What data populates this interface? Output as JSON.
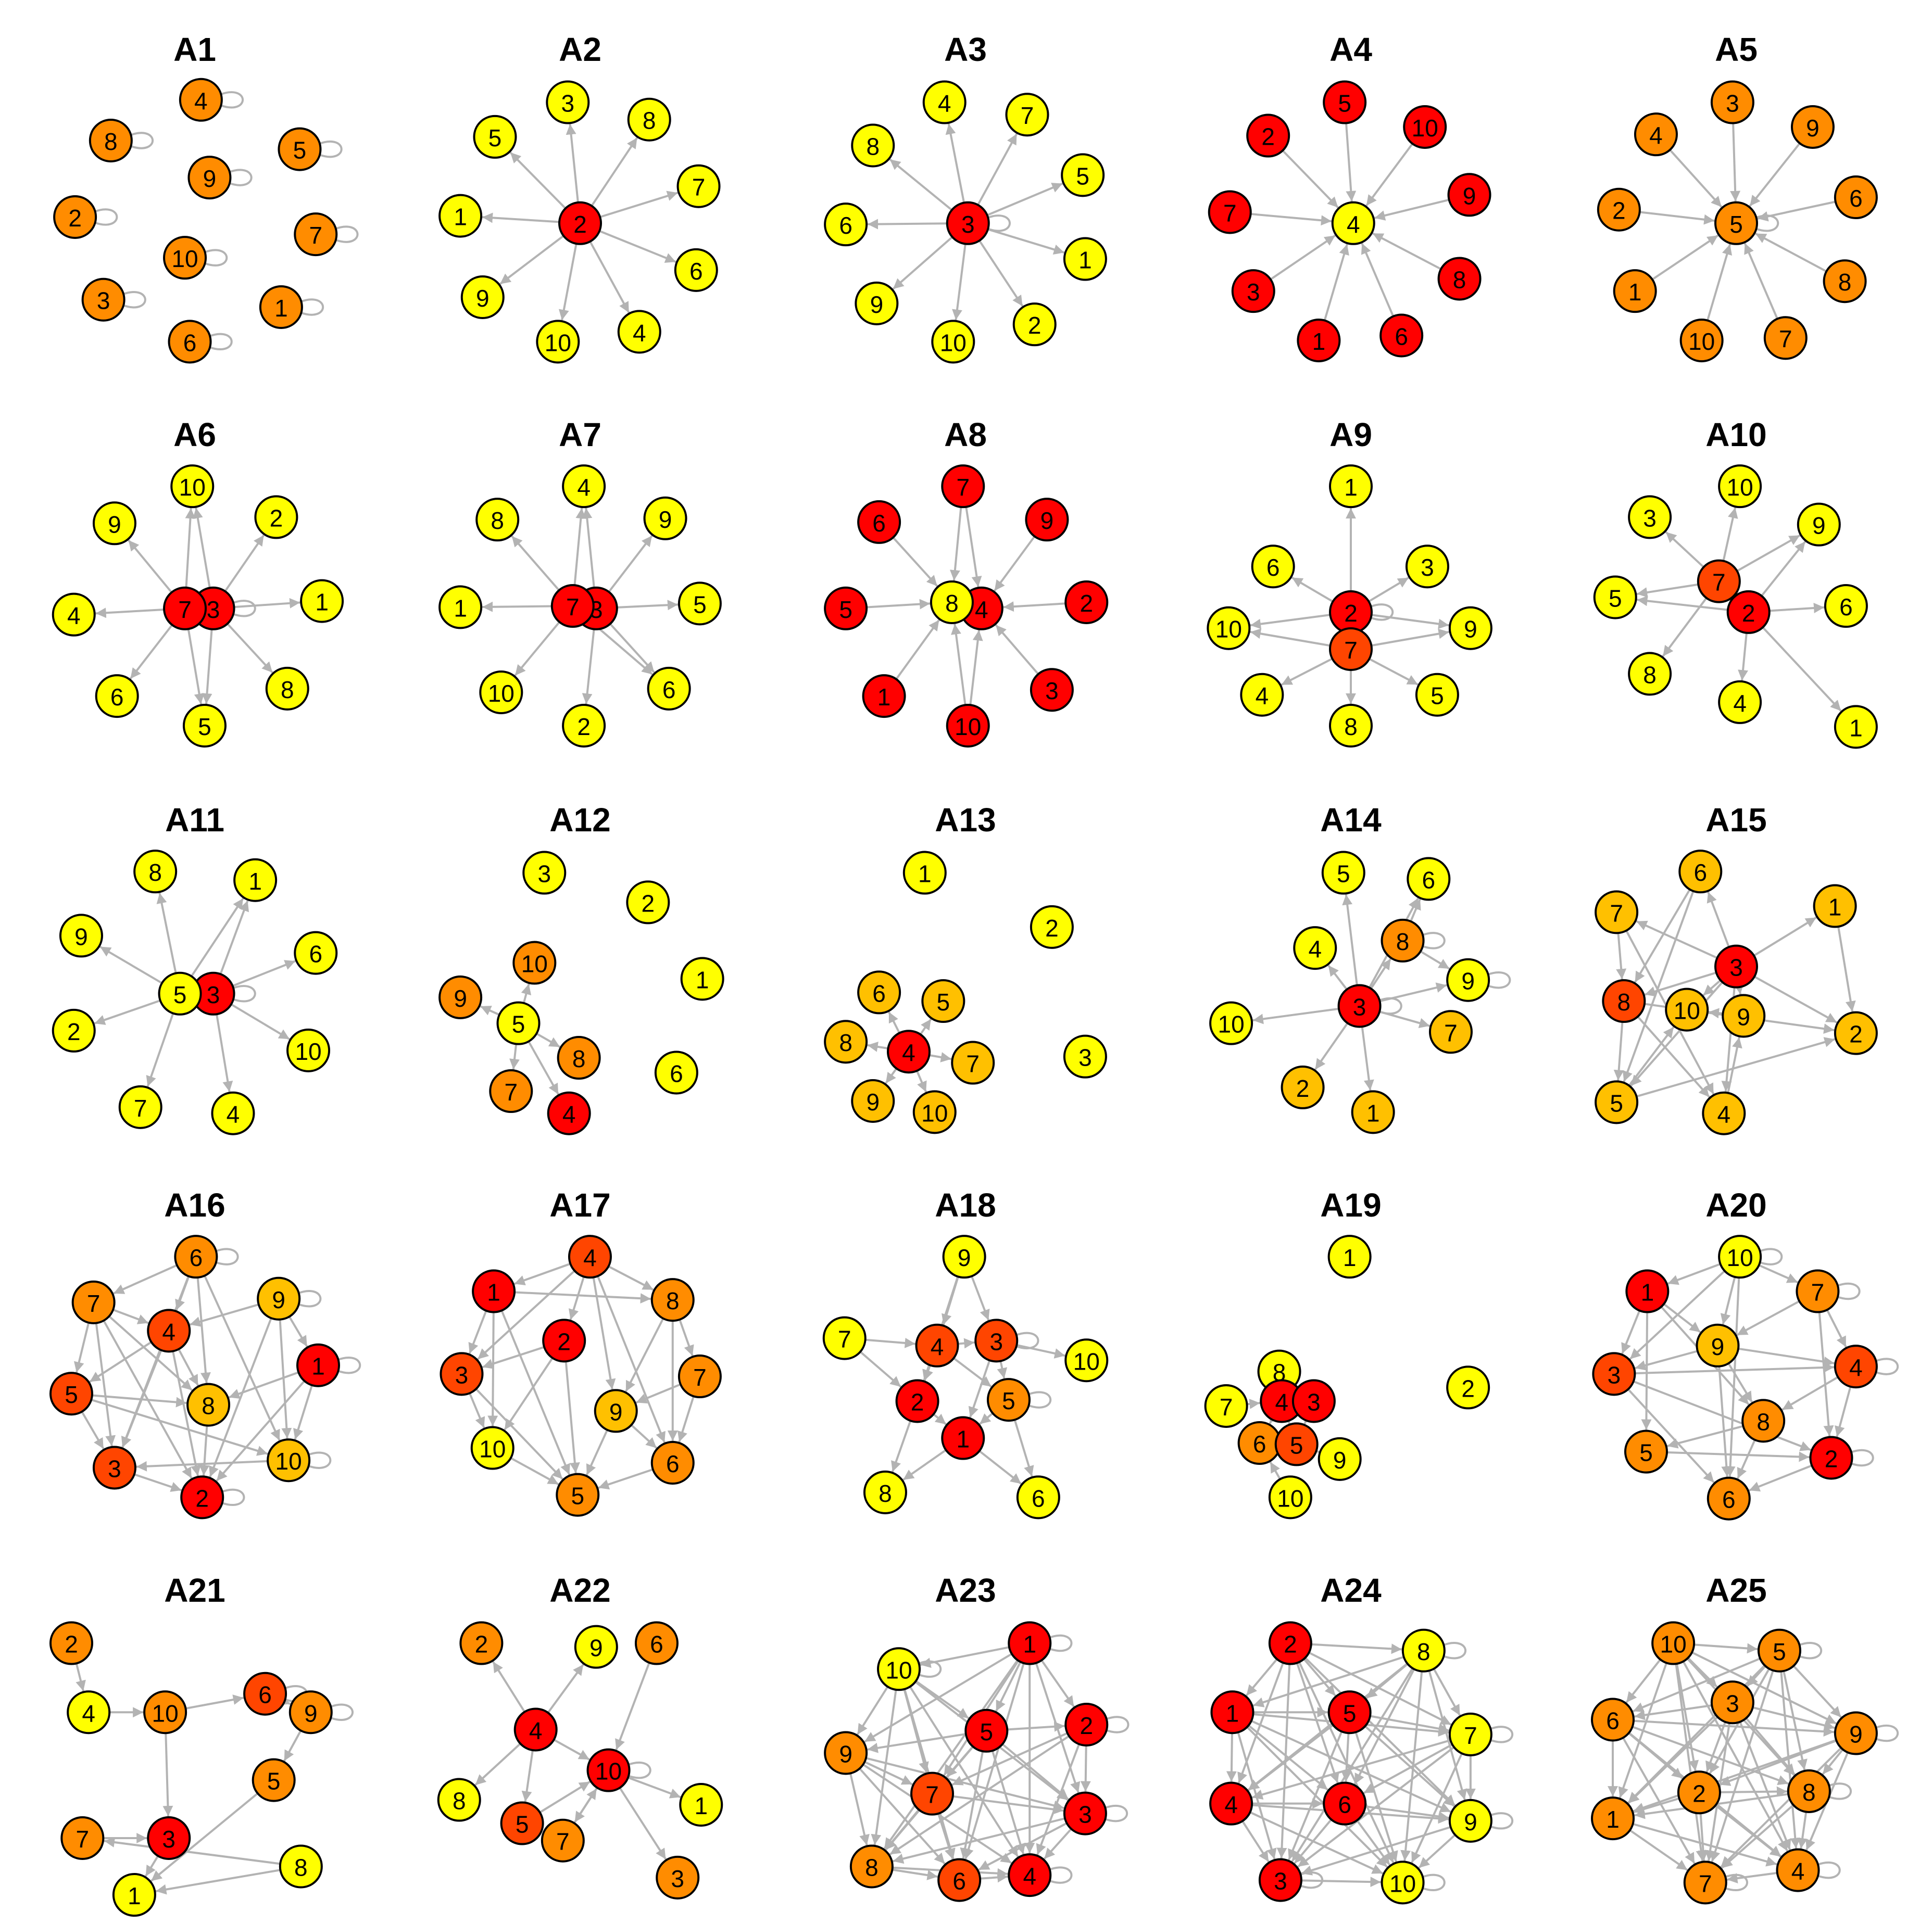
{
  "colors": {
    "red": "#ff0000",
    "orange_red": "#ff4500",
    "orange": "#ff8c00",
    "amber": "#ffc000",
    "yellow": "#ffff00",
    "edge": "#b3b3b3"
  },
  "panels": [
    {
      "title": "A1",
      "nodes": [
        {
          "label": "4",
          "color": "orange"
        },
        {
          "label": "8",
          "color": "orange"
        },
        {
          "label": "5",
          "color": "orange"
        },
        {
          "label": "9",
          "color": "orange"
        },
        {
          "label": "2",
          "color": "orange"
        },
        {
          "label": "7",
          "color": "orange"
        },
        {
          "label": "10",
          "color": "orange"
        },
        {
          "label": "3",
          "color": "orange"
        },
        {
          "label": "1",
          "color": "orange"
        },
        {
          "label": "6",
          "color": "orange"
        }
      ]
    },
    {
      "title": "A2",
      "nodes": [
        {
          "label": "3",
          "color": "yellow"
        },
        {
          "label": "8",
          "color": "yellow"
        },
        {
          "label": "5",
          "color": "yellow"
        },
        {
          "label": "7",
          "color": "yellow"
        },
        {
          "label": "1",
          "color": "yellow"
        },
        {
          "label": "2",
          "color": "red"
        },
        {
          "label": "6",
          "color": "yellow"
        },
        {
          "label": "9",
          "color": "yellow"
        },
        {
          "label": "10",
          "color": "yellow"
        },
        {
          "label": "4",
          "color": "yellow"
        }
      ]
    },
    {
      "title": "A3",
      "nodes": [
        {
          "label": "4",
          "color": "yellow"
        },
        {
          "label": "7",
          "color": "yellow"
        },
        {
          "label": "8",
          "color": "yellow"
        },
        {
          "label": "5",
          "color": "yellow"
        },
        {
          "label": "6",
          "color": "yellow"
        },
        {
          "label": "3",
          "color": "red"
        },
        {
          "label": "1",
          "color": "yellow"
        },
        {
          "label": "9",
          "color": "yellow"
        },
        {
          "label": "10",
          "color": "yellow"
        },
        {
          "label": "2",
          "color": "yellow"
        }
      ]
    },
    {
      "title": "A4",
      "nodes": [
        {
          "label": "5",
          "color": "red"
        },
        {
          "label": "2",
          "color": "red"
        },
        {
          "label": "10",
          "color": "red"
        },
        {
          "label": "9",
          "color": "red"
        },
        {
          "label": "7",
          "color": "red"
        },
        {
          "label": "4",
          "color": "yellow"
        },
        {
          "label": "3",
          "color": "red"
        },
        {
          "label": "8",
          "color": "red"
        },
        {
          "label": "1",
          "color": "red"
        },
        {
          "label": "6",
          "color": "red"
        }
      ]
    },
    {
      "title": "A5",
      "nodes": [
        {
          "label": "3",
          "color": "orange"
        },
        {
          "label": "4",
          "color": "orange"
        },
        {
          "label": "9",
          "color": "orange"
        },
        {
          "label": "6",
          "color": "orange"
        },
        {
          "label": "2",
          "color": "orange"
        },
        {
          "label": "5",
          "color": "orange"
        },
        {
          "label": "1",
          "color": "orange"
        },
        {
          "label": "8",
          "color": "orange"
        },
        {
          "label": "10",
          "color": "orange"
        },
        {
          "label": "7",
          "color": "orange"
        }
      ]
    },
    {
      "title": "A6",
      "nodes": [
        {
          "label": "10",
          "color": "yellow"
        },
        {
          "label": "9",
          "color": "yellow"
        },
        {
          "label": "2",
          "color": "yellow"
        },
        {
          "label": "1",
          "color": "yellow"
        },
        {
          "label": "4",
          "color": "yellow"
        },
        {
          "label": "3",
          "color": "red"
        },
        {
          "label": "7",
          "color": "red"
        },
        {
          "label": "8",
          "color": "yellow"
        },
        {
          "label": "6",
          "color": "yellow"
        },
        {
          "label": "5",
          "color": "yellow"
        }
      ]
    },
    {
      "title": "A7",
      "nodes": [
        {
          "label": "4",
          "color": "yellow"
        },
        {
          "label": "8",
          "color": "yellow"
        },
        {
          "label": "9",
          "color": "yellow"
        },
        {
          "label": "5",
          "color": "yellow"
        },
        {
          "label": "1",
          "color": "yellow"
        },
        {
          "label": "3",
          "color": "red"
        },
        {
          "label": "7",
          "color": "red"
        },
        {
          "label": "6",
          "color": "yellow"
        },
        {
          "label": "10",
          "color": "yellow"
        },
        {
          "label": "2",
          "color": "yellow"
        }
      ]
    },
    {
      "title": "A8",
      "nodes": [
        {
          "label": "7",
          "color": "red"
        },
        {
          "label": "6",
          "color": "red"
        },
        {
          "label": "9",
          "color": "red"
        },
        {
          "label": "2",
          "color": "red"
        },
        {
          "label": "5",
          "color": "red"
        },
        {
          "label": "4",
          "color": "red"
        },
        {
          "label": "8",
          "color": "yellow"
        },
        {
          "label": "3",
          "color": "red"
        },
        {
          "label": "1",
          "color": "red"
        },
        {
          "label": "10",
          "color": "red"
        }
      ]
    },
    {
      "title": "A9",
      "nodes": [
        {
          "label": "1",
          "color": "yellow"
        },
        {
          "label": "6",
          "color": "yellow"
        },
        {
          "label": "3",
          "color": "yellow"
        },
        {
          "label": "2",
          "color": "red"
        },
        {
          "label": "9",
          "color": "yellow"
        },
        {
          "label": "10",
          "color": "yellow"
        },
        {
          "label": "7",
          "color": "orange_red"
        },
        {
          "label": "4",
          "color": "yellow"
        },
        {
          "label": "5",
          "color": "yellow"
        },
        {
          "label": "8",
          "color": "yellow"
        }
      ]
    },
    {
      "title": "A10",
      "nodes": [
        {
          "label": "10",
          "color": "yellow"
        },
        {
          "label": "3",
          "color": "yellow"
        },
        {
          "label": "9",
          "color": "yellow"
        },
        {
          "label": "7",
          "color": "orange_red"
        },
        {
          "label": "5",
          "color": "yellow"
        },
        {
          "label": "2",
          "color": "red"
        },
        {
          "label": "6",
          "color": "yellow"
        },
        {
          "label": "8",
          "color": "yellow"
        },
        {
          "label": "4",
          "color": "yellow"
        },
        {
          "label": "1",
          "color": "yellow"
        }
      ]
    },
    {
      "title": "A11",
      "nodes": [
        {
          "label": "8",
          "color": "yellow"
        },
        {
          "label": "1",
          "color": "yellow"
        },
        {
          "label": "9",
          "color": "yellow"
        },
        {
          "label": "6",
          "color": "yellow"
        },
        {
          "label": "3",
          "color": "red"
        },
        {
          "label": "5",
          "color": "yellow"
        },
        {
          "label": "2",
          "color": "yellow"
        },
        {
          "label": "10",
          "color": "yellow"
        },
        {
          "label": "7",
          "color": "yellow"
        },
        {
          "label": "4",
          "color": "yellow"
        }
      ]
    },
    {
      "title": "A12",
      "nodes": [
        {
          "label": "3",
          "color": "yellow"
        },
        {
          "label": "2",
          "color": "yellow"
        },
        {
          "label": "10",
          "color": "orange"
        },
        {
          "label": "1",
          "color": "yellow"
        },
        {
          "label": "9",
          "color": "orange"
        },
        {
          "label": "5",
          "color": "yellow"
        },
        {
          "label": "8",
          "color": "orange"
        },
        {
          "label": "6",
          "color": "yellow"
        },
        {
          "label": "7",
          "color": "orange"
        },
        {
          "label": "4",
          "color": "red"
        }
      ]
    },
    {
      "title": "A13",
      "nodes": [
        {
          "label": "1",
          "color": "yellow"
        },
        {
          "label": "2",
          "color": "yellow"
        },
        {
          "label": "6",
          "color": "amber"
        },
        {
          "label": "5",
          "color": "amber"
        },
        {
          "label": "8",
          "color": "amber"
        },
        {
          "label": "4",
          "color": "red"
        },
        {
          "label": "7",
          "color": "amber"
        },
        {
          "label": "3",
          "color": "yellow"
        },
        {
          "label": "9",
          "color": "amber"
        },
        {
          "label": "10",
          "color": "amber"
        }
      ]
    },
    {
      "title": "A14",
      "nodes": [
        {
          "label": "5",
          "color": "yellow"
        },
        {
          "label": "6",
          "color": "yellow"
        },
        {
          "label": "4",
          "color": "yellow"
        },
        {
          "label": "8",
          "color": "orange"
        },
        {
          "label": "9",
          "color": "yellow"
        },
        {
          "label": "10",
          "color": "yellow"
        },
        {
          "label": "3",
          "color": "red"
        },
        {
          "label": "7",
          "color": "amber"
        },
        {
          "label": "2",
          "color": "amber"
        },
        {
          "label": "1",
          "color": "amber"
        }
      ]
    },
    {
      "title": "A15",
      "nodes": [
        {
          "label": "6",
          "color": "amber"
        },
        {
          "label": "7",
          "color": "amber"
        },
        {
          "label": "1",
          "color": "amber"
        },
        {
          "label": "3",
          "color": "red"
        },
        {
          "label": "8",
          "color": "orange_red"
        },
        {
          "label": "10",
          "color": "amber"
        },
        {
          "label": "9",
          "color": "amber"
        },
        {
          "label": "2",
          "color": "amber"
        },
        {
          "label": "5",
          "color": "amber"
        },
        {
          "label": "4",
          "color": "amber"
        }
      ]
    },
    {
      "title": "A16",
      "nodes": [
        {
          "label": "6",
          "color": "orange"
        },
        {
          "label": "7",
          "color": "orange"
        },
        {
          "label": "9",
          "color": "amber"
        },
        {
          "label": "4",
          "color": "orange_red"
        },
        {
          "label": "1",
          "color": "red"
        },
        {
          "label": "5",
          "color": "orange_red"
        },
        {
          "label": "8",
          "color": "amber"
        },
        {
          "label": "10",
          "color": "amber"
        },
        {
          "label": "3",
          "color": "orange_red"
        },
        {
          "label": "2",
          "color": "red"
        }
      ]
    },
    {
      "title": "A17",
      "nodes": [
        {
          "label": "4",
          "color": "orange_red"
        },
        {
          "label": "1",
          "color": "red"
        },
        {
          "label": "8",
          "color": "orange"
        },
        {
          "label": "2",
          "color": "red"
        },
        {
          "label": "3",
          "color": "orange_red"
        },
        {
          "label": "7",
          "color": "orange"
        },
        {
          "label": "9",
          "color": "amber"
        },
        {
          "label": "10",
          "color": "yellow"
        },
        {
          "label": "6",
          "color": "orange"
        },
        {
          "label": "5",
          "color": "orange"
        }
      ]
    },
    {
      "title": "A18",
      "nodes": [
        {
          "label": "9",
          "color": "yellow"
        },
        {
          "label": "7",
          "color": "yellow"
        },
        {
          "label": "4",
          "color": "orange_red"
        },
        {
          "label": "3",
          "color": "orange_red"
        },
        {
          "label": "10",
          "color": "yellow"
        },
        {
          "label": "2",
          "color": "red"
        },
        {
          "label": "5",
          "color": "orange"
        },
        {
          "label": "1",
          "color": "red"
        },
        {
          "label": "8",
          "color": "yellow"
        },
        {
          "label": "6",
          "color": "yellow"
        }
      ]
    },
    {
      "title": "A19",
      "nodes": [
        {
          "label": "1",
          "color": "yellow"
        },
        {
          "label": "8",
          "color": "yellow"
        },
        {
          "label": "2",
          "color": "yellow"
        },
        {
          "label": "7",
          "color": "yellow"
        },
        {
          "label": "4",
          "color": "red"
        },
        {
          "label": "3",
          "color": "red"
        },
        {
          "label": "6",
          "color": "orange"
        },
        {
          "label": "5",
          "color": "orange_red"
        },
        {
          "label": "9",
          "color": "yellow"
        },
        {
          "label": "10",
          "color": "yellow"
        }
      ]
    },
    {
      "title": "A20",
      "nodes": [
        {
          "label": "10",
          "color": "yellow"
        },
        {
          "label": "1",
          "color": "red"
        },
        {
          "label": "7",
          "color": "orange"
        },
        {
          "label": "9",
          "color": "amber"
        },
        {
          "label": "3",
          "color": "orange_red"
        },
        {
          "label": "4",
          "color": "orange_red"
        },
        {
          "label": "8",
          "color": "orange"
        },
        {
          "label": "5",
          "color": "orange"
        },
        {
          "label": "2",
          "color": "red"
        },
        {
          "label": "6",
          "color": "orange"
        }
      ]
    },
    {
      "title": "A21",
      "nodes": [
        {
          "label": "2",
          "color": "orange"
        },
        {
          "label": "6",
          "color": "orange_red"
        },
        {
          "label": "4",
          "color": "yellow"
        },
        {
          "label": "10",
          "color": "orange"
        },
        {
          "label": "9",
          "color": "orange"
        },
        {
          "label": "5",
          "color": "orange"
        },
        {
          "label": "7",
          "color": "orange"
        },
        {
          "label": "3",
          "color": "red"
        },
        {
          "label": "8",
          "color": "yellow"
        },
        {
          "label": "1",
          "color": "yellow"
        }
      ]
    },
    {
      "title": "A22",
      "nodes": [
        {
          "label": "2",
          "color": "orange"
        },
        {
          "label": "9",
          "color": "yellow"
        },
        {
          "label": "6",
          "color": "orange"
        },
        {
          "label": "4",
          "color": "red"
        },
        {
          "label": "10",
          "color": "red"
        },
        {
          "label": "8",
          "color": "yellow"
        },
        {
          "label": "1",
          "color": "yellow"
        },
        {
          "label": "5",
          "color": "orange_red"
        },
        {
          "label": "7",
          "color": "orange"
        },
        {
          "label": "3",
          "color": "orange"
        }
      ]
    },
    {
      "title": "A23",
      "nodes": [
        {
          "label": "1",
          "color": "red"
        },
        {
          "label": "10",
          "color": "yellow"
        },
        {
          "label": "5",
          "color": "red"
        },
        {
          "label": "2",
          "color": "red"
        },
        {
          "label": "9",
          "color": "orange"
        },
        {
          "label": "7",
          "color": "orange_red"
        },
        {
          "label": "3",
          "color": "red"
        },
        {
          "label": "8",
          "color": "orange"
        },
        {
          "label": "6",
          "color": "orange_red"
        },
        {
          "label": "4",
          "color": "red"
        }
      ]
    },
    {
      "title": "A24",
      "nodes": [
        {
          "label": "2",
          "color": "red"
        },
        {
          "label": "8",
          "color": "yellow"
        },
        {
          "label": "1",
          "color": "red"
        },
        {
          "label": "5",
          "color": "red"
        },
        {
          "label": "7",
          "color": "yellow"
        },
        {
          "label": "4",
          "color": "red"
        },
        {
          "label": "6",
          "color": "red"
        },
        {
          "label": "9",
          "color": "yellow"
        },
        {
          "label": "3",
          "color": "red"
        },
        {
          "label": "10",
          "color": "yellow"
        }
      ]
    },
    {
      "title": "A25",
      "nodes": [
        {
          "label": "10",
          "color": "orange"
        },
        {
          "label": "5",
          "color": "orange"
        },
        {
          "label": "3",
          "color": "orange"
        },
        {
          "label": "6",
          "color": "orange"
        },
        {
          "label": "9",
          "color": "orange"
        },
        {
          "label": "2",
          "color": "orange"
        },
        {
          "label": "8",
          "color": "orange"
        },
        {
          "label": "1",
          "color": "orange"
        },
        {
          "label": "4",
          "color": "orange"
        },
        {
          "label": "7",
          "color": "orange"
        }
      ]
    }
  ]
}
